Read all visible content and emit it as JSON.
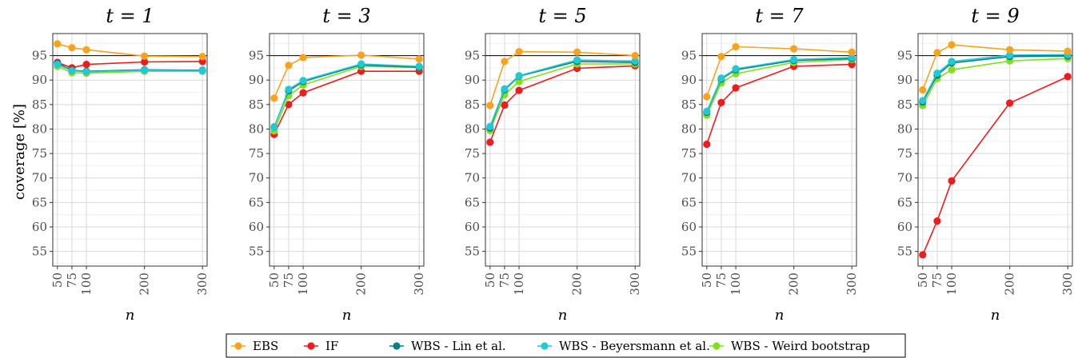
{
  "chart_data": {
    "type": "line",
    "ylabel": "coverage [%]",
    "xlabel": "n",
    "x": [
      50,
      75,
      100,
      200,
      300
    ],
    "x_tick_labels": [
      "50",
      "75",
      "100",
      "200",
      "300"
    ],
    "xlim": [
      42,
      308
    ],
    "ylim": [
      52,
      99.5
    ],
    "y_ticks": [
      55,
      60,
      65,
      70,
      75,
      80,
      85,
      90,
      95
    ],
    "y_tick_labels": [
      "55",
      "60",
      "65",
      "70",
      "75",
      "80",
      "85",
      "90",
      "95"
    ],
    "reference_line": 95,
    "grid": true,
    "legend_position": "bottom",
    "series_meta": [
      {
        "name": "EBS",
        "color": "#f8a31b"
      },
      {
        "name": "IF",
        "color": "#ee1c1c"
      },
      {
        "name": "WBS - Lin et al.",
        "color": "#0a7d86"
      },
      {
        "name": "WBS - Beyersmann et al.",
        "color": "#22c9d4"
      },
      {
        "name": "WBS - Weird bootstrap",
        "color": "#7ee21a"
      }
    ],
    "panels": [
      {
        "title": "t = 1",
        "series": [
          {
            "name": "EBS",
            "values": [
              97.4,
              96.6,
              96.2,
              94.9,
              94.8
            ]
          },
          {
            "name": "IF",
            "values": [
              93.6,
              92.5,
              93.2,
              93.7,
              93.8
            ]
          },
          {
            "name": "WBS - Lin et al.",
            "values": [
              93.4,
              92.0,
              91.8,
              92.1,
              92.0
            ]
          },
          {
            "name": "WBS - Beyersmann et al.",
            "values": [
              93.2,
              91.9,
              91.7,
              92.0,
              91.9
            ]
          },
          {
            "name": "WBS - Weird bootstrap",
            "values": [
              92.8,
              91.5,
              91.4,
              91.8,
              91.8
            ]
          }
        ]
      },
      {
        "title": "t = 3",
        "series": [
          {
            "name": "EBS",
            "values": [
              86.3,
              93.0,
              94.6,
              95.1,
              94.3
            ]
          },
          {
            "name": "IF",
            "values": [
              78.9,
              85.0,
              87.4,
              91.8,
              91.8
            ]
          },
          {
            "name": "WBS - Lin et al.",
            "values": [
              80.4,
              87.8,
              89.7,
              93.1,
              92.6
            ]
          },
          {
            "name": "WBS - Beyersmann et al.",
            "values": [
              80.3,
              88.1,
              89.9,
              93.3,
              92.8
            ]
          },
          {
            "name": "WBS - Weird bootstrap",
            "values": [
              79.6,
              86.8,
              89.0,
              92.8,
              92.6
            ]
          }
        ]
      },
      {
        "title": "t = 5",
        "series": [
          {
            "name": "EBS",
            "values": [
              84.8,
              93.8,
              95.8,
              95.7,
              95.0
            ]
          },
          {
            "name": "IF",
            "values": [
              77.3,
              84.9,
              87.9,
              92.4,
              92.9
            ]
          },
          {
            "name": "WBS - Lin et al.",
            "values": [
              80.2,
              88.0,
              90.8,
              93.8,
              93.6
            ]
          },
          {
            "name": "WBS - Beyersmann et al.",
            "values": [
              80.5,
              88.2,
              90.9,
              94.1,
              93.9
            ]
          },
          {
            "name": "WBS - Weird bootstrap",
            "values": [
              79.7,
              87.0,
              89.7,
              93.3,
              93.3
            ]
          }
        ]
      },
      {
        "title": "t = 7",
        "series": [
          {
            "name": "EBS",
            "values": [
              86.6,
              94.8,
              96.8,
              96.4,
              95.7
            ]
          },
          {
            "name": "IF",
            "values": [
              76.9,
              85.4,
              88.4,
              92.8,
              93.2
            ]
          },
          {
            "name": "WBS - Lin et al.",
            "values": [
              83.4,
              90.2,
              92.1,
              94.0,
              94.4
            ]
          },
          {
            "name": "WBS - Beyersmann et al.",
            "values": [
              83.6,
              90.4,
              92.3,
              94.2,
              94.6
            ]
          },
          {
            "name": "WBS - Weird bootstrap",
            "values": [
              82.8,
              89.4,
              91.3,
              93.6,
              94.2
            ]
          }
        ]
      },
      {
        "title": "t = 9",
        "series": [
          {
            "name": "EBS",
            "values": [
              88.0,
              95.6,
              97.2,
              96.2,
              95.9
            ]
          },
          {
            "name": "IF",
            "values": [
              54.3,
              61.2,
              69.4,
              85.3,
              90.7
            ]
          },
          {
            "name": "WBS - Lin et al.",
            "values": [
              85.5,
              91.0,
              93.5,
              94.8,
              94.9
            ]
          },
          {
            "name": "WBS - Beyersmann et al.",
            "values": [
              85.8,
              91.4,
              93.8,
              95.1,
              95.2
            ]
          },
          {
            "name": "WBS - Weird bootstrap",
            "values": [
              84.8,
              90.3,
              92.1,
              93.9,
              94.4
            ]
          }
        ]
      }
    ]
  }
}
